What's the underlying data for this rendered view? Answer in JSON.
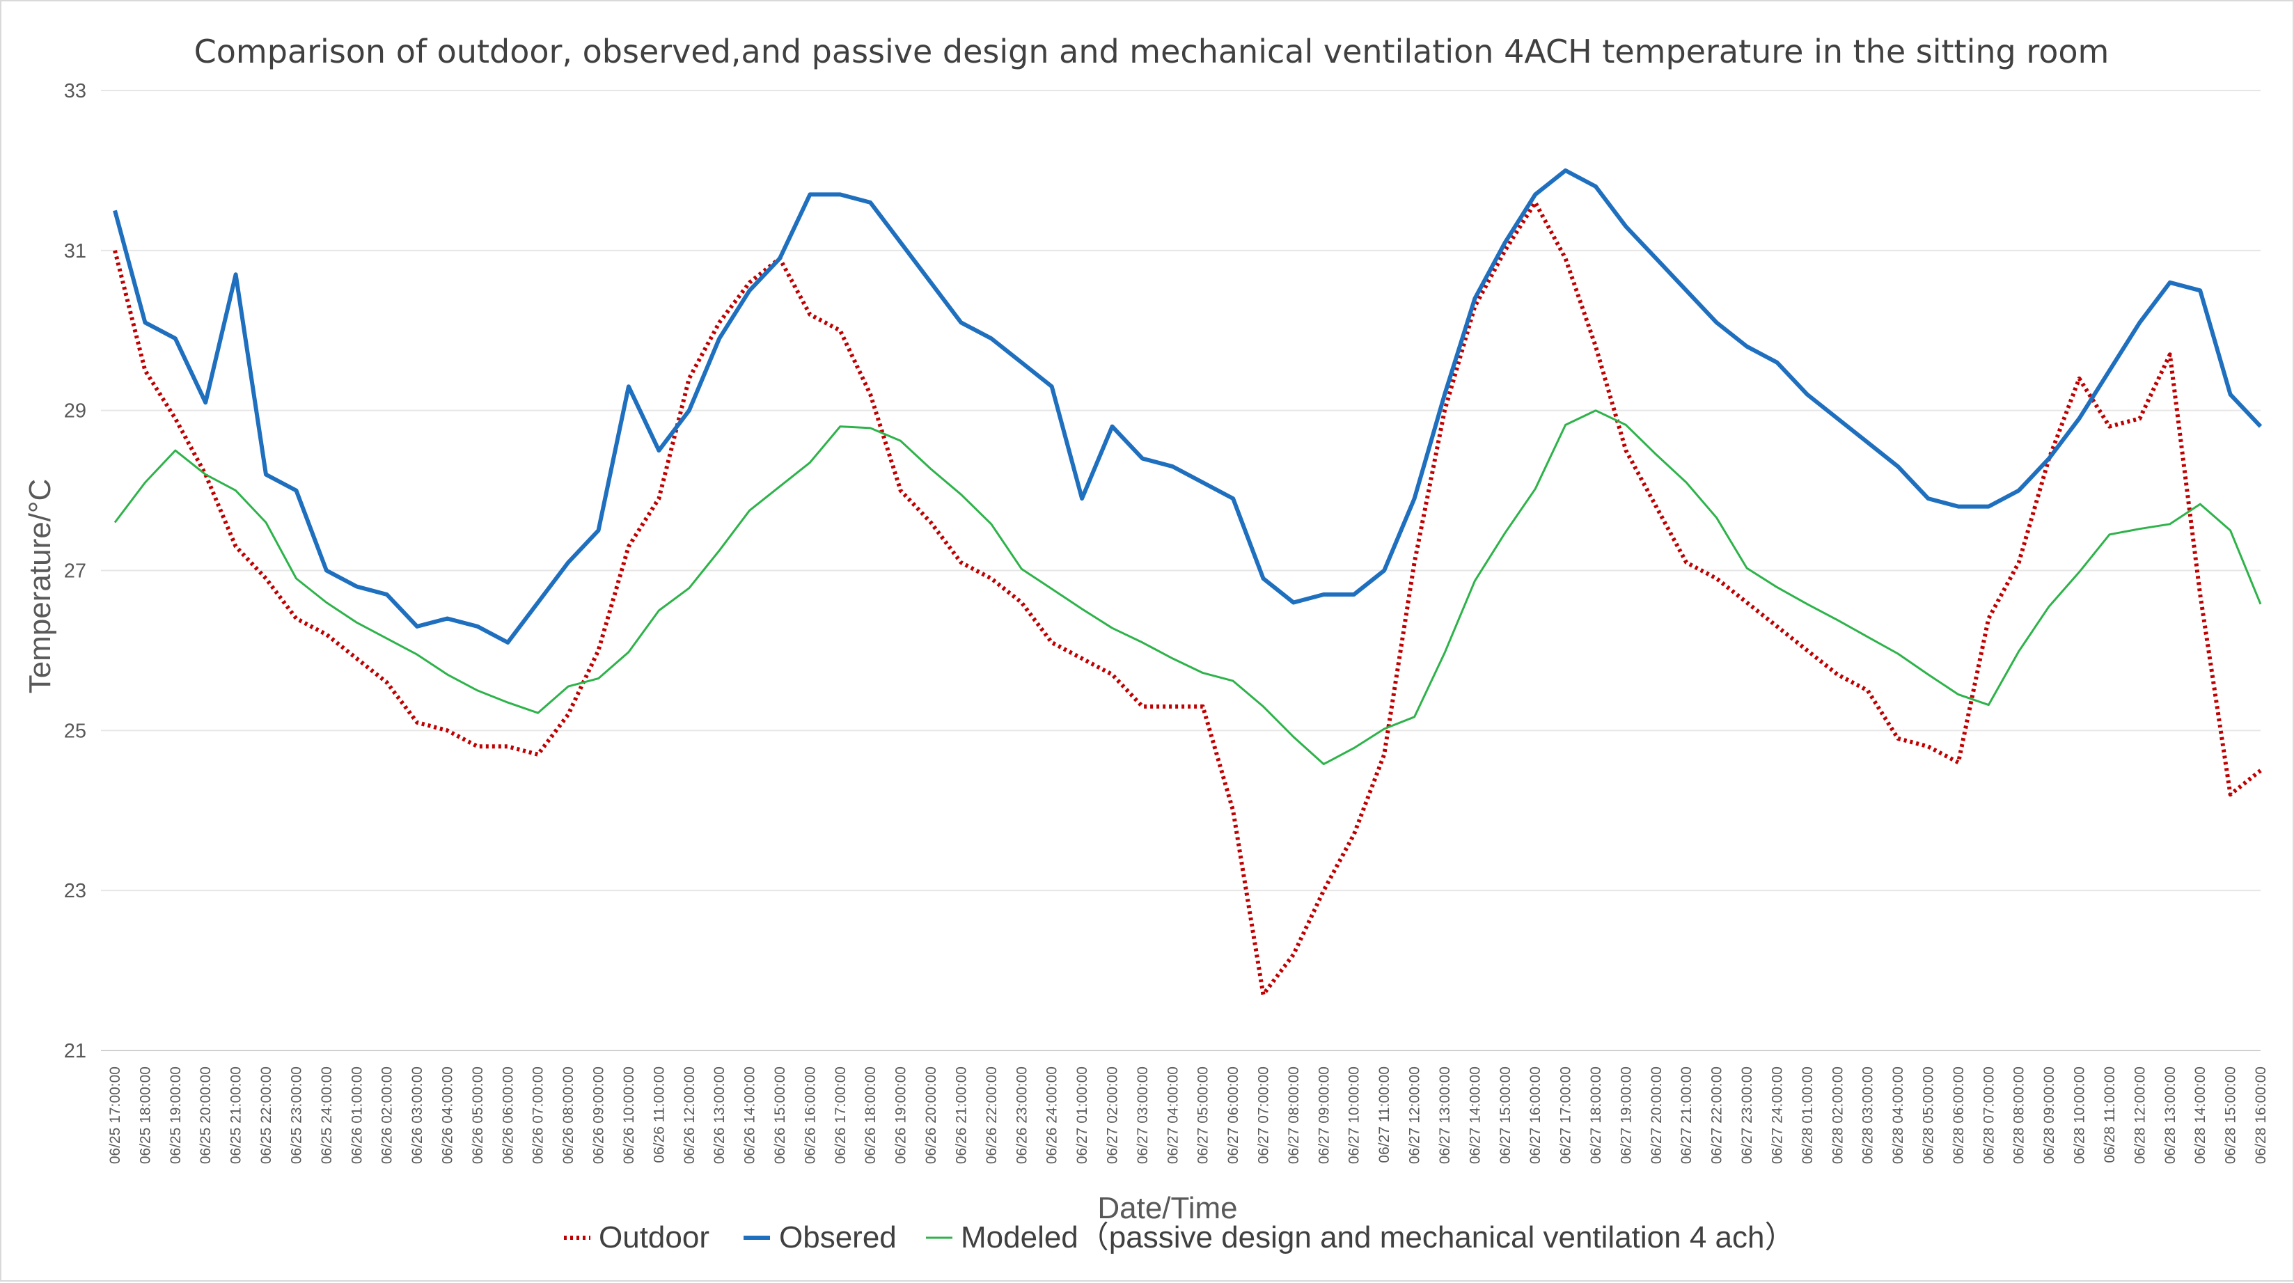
{
  "chart_data": {
    "type": "line",
    "title": "Comparison of outdoor, observed,and passive design and mechanical ventilation 4ACH temperature in the sitting room",
    "xlabel": "Date/Time",
    "ylabel": "Temperature/°C",
    "ylim": [
      21,
      33
    ],
    "yticks": [
      21,
      23,
      25,
      27,
      29,
      31,
      33
    ],
    "grid": true,
    "legend_position": "bottom",
    "categories": [
      "06/25 17:00:00",
      "06/25 18:00:00",
      "06/25 19:00:00",
      "06/25 20:00:00",
      "06/25 21:00:00",
      "06/25 22:00:00",
      "06/25 23:00:00",
      "06/25 24:00:00",
      "06/26 01:00:00",
      "06/26 02:00:00",
      "06/26 03:00:00",
      "06/26 04:00:00",
      "06/26 05:00:00",
      "06/26 06:00:00",
      "06/26 07:00:00",
      "06/26 08:00:00",
      "06/26 09:00:00",
      "06/26 10:00:00",
      "06/26 11:00:00",
      "06/26 12:00:00",
      "06/26 13:00:00",
      "06/26 14:00:00",
      "06/26 15:00:00",
      "06/26 16:00:00",
      "06/26 17:00:00",
      "06/26 18:00:00",
      "06/26 19:00:00",
      "06/26 20:00:00",
      "06/26 21:00:00",
      "06/26 22:00:00",
      "06/26 23:00:00",
      "06/26 24:00:00",
      "06/27 01:00:00",
      "06/27 02:00:00",
      "06/27 03:00:00",
      "06/27 04:00:00",
      "06/27 05:00:00",
      "06/27 06:00:00",
      "06/27 07:00:00",
      "06/27 08:00:00",
      "06/27 09:00:00",
      "06/27 10:00:00",
      "06/27 11:00:00",
      "06/27 12:00:00",
      "06/27 13:00:00",
      "06/27 14:00:00",
      "06/27 15:00:00",
      "06/27 16:00:00",
      "06/27 17:00:00",
      "06/27 18:00:00",
      "06/27 19:00:00",
      "06/27 20:00:00",
      "06/27 21:00:00",
      "06/27 22:00:00",
      "06/27 23:00:00",
      "06/27 24:00:00",
      "06/28 01:00:00",
      "06/28 02:00:00",
      "06/28 03:00:00",
      "06/28 04:00:00",
      "06/28 05:00:00",
      "06/28 06:00:00",
      "06/28 07:00:00",
      "06/28 08:00:00",
      "06/28 09:00:00",
      "06/28 10:00:00",
      "06/28 11:00:00",
      "06/28 12:00:00",
      "06/28 13:00:00",
      "06/28 14:00:00",
      "06/28 15:00:00",
      "06/28 16:00:00"
    ],
    "series": [
      {
        "name": "Outdoor",
        "color": "#c00000",
        "style": "dotted",
        "values": [
          31.0,
          29.5,
          28.9,
          28.2,
          27.3,
          26.9,
          26.4,
          26.2,
          25.9,
          25.6,
          25.1,
          25.0,
          24.8,
          24.8,
          24.7,
          25.2,
          26.0,
          27.3,
          27.9,
          29.4,
          30.1,
          30.6,
          30.9,
          30.2,
          30.0,
          29.2,
          28.0,
          27.6,
          27.1,
          26.9,
          26.6,
          26.1,
          25.9,
          25.7,
          25.3,
          25.3,
          25.3,
          24.0,
          21.7,
          22.2,
          23.0,
          23.7,
          24.7,
          27.1,
          29.0,
          30.3,
          31.0,
          31.6,
          30.9,
          29.8,
          28.5,
          27.8,
          27.1,
          26.9,
          26.6,
          26.3,
          26.0,
          25.7,
          25.5,
          24.9,
          24.8,
          24.6,
          26.4,
          27.1,
          28.4,
          29.4,
          28.8,
          28.9,
          29.7,
          26.7,
          24.2,
          24.5
        ]
      },
      {
        "name": "Obsered",
        "color": "#1f6fbf",
        "style": "solid",
        "values": [
          31.5,
          30.1,
          29.9,
          29.1,
          30.7,
          28.2,
          28.0,
          27.0,
          26.8,
          26.7,
          26.3,
          26.4,
          26.3,
          26.1,
          26.6,
          27.1,
          27.5,
          29.3,
          28.5,
          29.0,
          29.9,
          30.5,
          30.9,
          31.7,
          31.7,
          31.6,
          31.1,
          30.6,
          30.1,
          29.9,
          29.6,
          29.3,
          27.9,
          28.8,
          28.4,
          28.3,
          28.1,
          27.9,
          26.9,
          26.6,
          26.7,
          26.7,
          27.0,
          27.9,
          29.2,
          30.4,
          31.1,
          31.7,
          32.0,
          31.8,
          31.3,
          30.9,
          30.5,
          30.1,
          29.8,
          29.6,
          29.2,
          28.9,
          28.6,
          28.3,
          27.9,
          27.8,
          27.8,
          28.0,
          28.4,
          28.9,
          29.5,
          30.1,
          30.6,
          30.5,
          29.2,
          28.8
        ]
      },
      {
        "name": "Modeled（passive design and mechanical ventilation 4 ach）",
        "color": "#2db34a",
        "style": "solid",
        "values": [
          27.6,
          28.1,
          28.5,
          28.2,
          28.0,
          27.6,
          26.9,
          26.6,
          26.35,
          26.15,
          25.95,
          25.7,
          25.5,
          25.35,
          25.22,
          25.55,
          25.65,
          25.98,
          26.5,
          26.78,
          27.25,
          27.75,
          28.05,
          28.35,
          28.8,
          28.78,
          28.62,
          28.27,
          27.95,
          27.58,
          27.02,
          26.77,
          26.52,
          26.28,
          26.1,
          25.9,
          25.72,
          25.62,
          25.3,
          24.92,
          24.58,
          24.78,
          25.02,
          25.17,
          25.97,
          26.87,
          27.47,
          28.02,
          28.82,
          29.0,
          28.82,
          28.45,
          28.1,
          27.66,
          27.03,
          26.79,
          26.58,
          26.38,
          26.17,
          25.96,
          25.7,
          25.45,
          25.32,
          25.99,
          26.55,
          26.98,
          27.45,
          27.52,
          27.58,
          27.83,
          27.5,
          26.58
        ]
      }
    ]
  }
}
